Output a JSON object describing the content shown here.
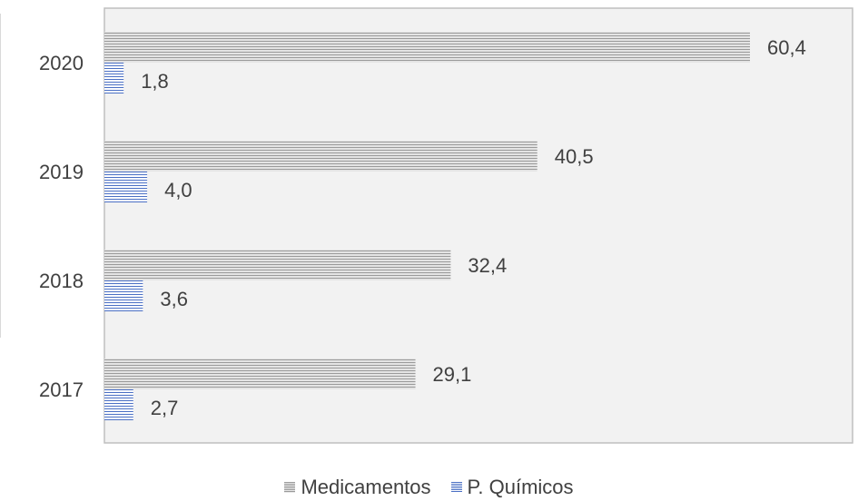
{
  "chart_data": {
    "type": "bar",
    "orientation": "horizontal",
    "categories": [
      "2020",
      "2019",
      "2018",
      "2017"
    ],
    "series": [
      {
        "name": "Medicamentos",
        "values": [
          60.4,
          40.5,
          32.4,
          29.1
        ],
        "labels": [
          "60,4",
          "40,5",
          "32,4",
          "29,1"
        ],
        "color": "#9a9a9a"
      },
      {
        "name": "P. Químicos",
        "values": [
          1.8,
          4.0,
          3.6,
          2.7
        ],
        "labels": [
          "1,8",
          "4,0",
          "3,6",
          "2,7"
        ],
        "color": "#4a6fc4"
      }
    ],
    "title": "",
    "xlabel": "",
    "ylabel": "",
    "xlim": [
      0,
      70
    ],
    "grid": false,
    "legend_position": "bottom",
    "plot_background": "#f2f2f2",
    "frame_color": "#bfbfbf"
  }
}
